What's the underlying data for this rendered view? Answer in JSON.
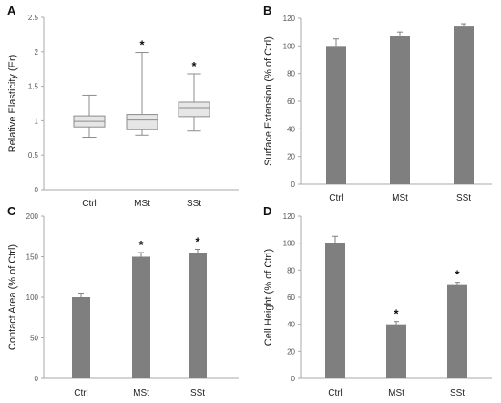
{
  "chart_data": [
    {
      "panel": "A",
      "type": "box",
      "ylabel": "Relative Elasticity (Er)",
      "categories": [
        "Ctrl",
        "MSt",
        "SSt"
      ],
      "ylim": [
        0,
        2.5
      ],
      "yticks": [
        0,
        0.5,
        1,
        1.5,
        2,
        2.5
      ],
      "ytick_labels": [
        "0",
        "0.5",
        "1",
        "1.5",
        "2",
        "2.5"
      ],
      "boxes": [
        {
          "min": 0.76,
          "q1": 0.91,
          "median": 0.99,
          "q3": 1.07,
          "max": 1.37,
          "sig": ""
        },
        {
          "min": 0.79,
          "q1": 0.87,
          "median": 1.01,
          "q3": 1.09,
          "max": 1.99,
          "sig": "*"
        },
        {
          "min": 0.85,
          "q1": 1.06,
          "median": 1.19,
          "q3": 1.27,
          "max": 1.68,
          "sig": "*"
        }
      ],
      "colors": {
        "box": "#e6e6e6",
        "line": "#8c8c8c"
      }
    },
    {
      "panel": "B",
      "type": "bar",
      "ylabel": "Surface Extension (% of Ctrl)",
      "categories": [
        "Ctrl",
        "MSt",
        "SSt"
      ],
      "ylim": [
        0,
        120
      ],
      "yticks": [
        0,
        20,
        40,
        60,
        80,
        100,
        120
      ],
      "ytick_labels": [
        "0",
        "20",
        "40",
        "60",
        "80",
        "100",
        "120"
      ],
      "values": [
        100,
        107,
        114
      ],
      "errors": [
        5,
        3,
        2
      ],
      "sig": [
        "",
        "",
        ""
      ],
      "colors": {
        "bar": "#7f7f7f"
      }
    },
    {
      "panel": "C",
      "type": "bar",
      "ylabel": "Contact Area (% of Ctrl)",
      "categories": [
        "Ctrl",
        "MSt",
        "SSt"
      ],
      "ylim": [
        0,
        200
      ],
      "yticks": [
        0,
        50,
        100,
        150,
        200
      ],
      "ytick_labels": [
        "0",
        "50",
        "100",
        "150",
        "200"
      ],
      "values": [
        100,
        150,
        155
      ],
      "errors": [
        5,
        5,
        4
      ],
      "sig": [
        "",
        "*",
        "*"
      ],
      "colors": {
        "bar": "#7f7f7f"
      }
    },
    {
      "panel": "D",
      "type": "bar",
      "ylabel": "Cell Height (% of Ctrl)",
      "categories": [
        "Ctrl",
        "MSt",
        "SSt"
      ],
      "ylim": [
        0,
        120
      ],
      "yticks": [
        0,
        20,
        40,
        60,
        80,
        100,
        120
      ],
      "ytick_labels": [
        "0",
        "20",
        "40",
        "60",
        "80",
        "100",
        "120"
      ],
      "values": [
        100,
        40,
        69
      ],
      "errors": [
        5,
        2,
        2
      ],
      "sig": [
        "",
        "*",
        "*"
      ],
      "colors": {
        "bar": "#7f7f7f"
      }
    }
  ]
}
